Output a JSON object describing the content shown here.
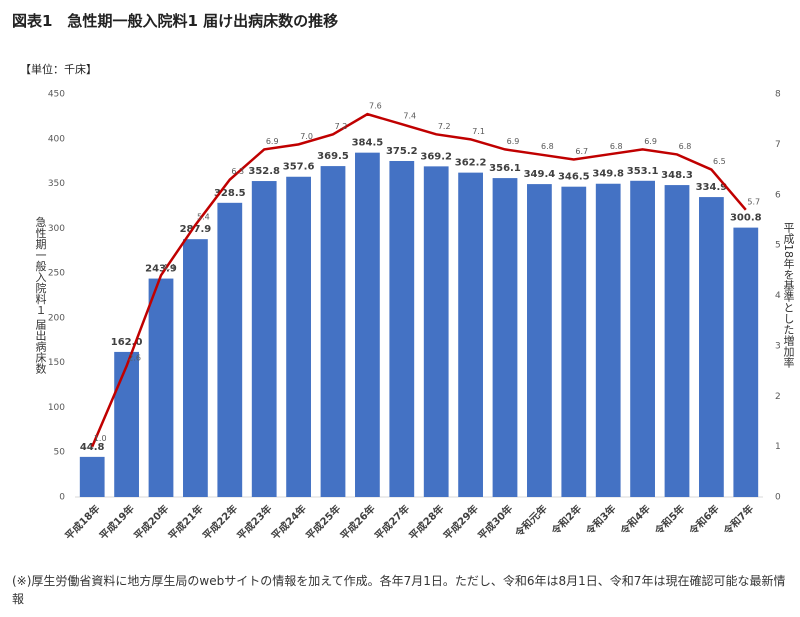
{
  "chart_data": {
    "type": "bar",
    "title": "図表1　急性期一般入院料1 届け出病床数の推移",
    "unit_label": "【単位：千床】",
    "y_label": "急性期一般入院料１ 届出病床数",
    "y2_label": "平成18年を基準とした増加率",
    "note": "(※)厚生労働省資料に地方厚生局のwebサイトの情報を加えて作成。各年7月1日。ただし、令和6年は8月1日、令和7年は現在確認可能な最新情報",
    "categories": [
      "平成18年",
      "平成19年",
      "平成20年",
      "平成21年",
      "平成22年",
      "平成23年",
      "平成24年",
      "平成25年",
      "平成26年",
      "平成27年",
      "平成28年",
      "平成29年",
      "平成30年",
      "令和元年",
      "令和2年",
      "令和3年",
      "令和4年",
      "令和5年",
      "令和6年",
      "令和7年"
    ],
    "series": [
      {
        "type": "bar",
        "color": "#4472c4",
        "values": [
          44.8,
          162.0,
          243.9,
          287.9,
          328.5,
          352.8,
          357.6,
          369.5,
          384.5,
          375.2,
          369.2,
          362.2,
          356.1,
          349.4,
          346.5,
          349.8,
          353.1,
          348.3,
          334.9,
          300.8
        ],
        "value_labels": [
          "44.8",
          "162.0",
          "243.9",
          "287.9",
          "328.5",
          "352.8",
          "357.6",
          "369.5",
          "384.5",
          "375.2",
          "369.2",
          "362.2",
          "356.1",
          "349.4",
          "346.5",
          "349.8",
          "353.1",
          "348.3",
          "334.9",
          "300.8"
        ]
      },
      {
        "type": "line",
        "axis": "y2",
        "color": "#c00000",
        "values": [
          1.0,
          2.6,
          4.4,
          5.4,
          6.3,
          6.9,
          7.0,
          7.2,
          7.6,
          7.4,
          7.2,
          7.1,
          6.9,
          6.8,
          6.7,
          6.8,
          6.9,
          6.8,
          6.5,
          5.7
        ],
        "value_labels": [
          "1.0",
          "2.6",
          "4.4",
          "5.4",
          "6.3",
          "6.9",
          "7.0",
          "7.2",
          "7.6",
          "7.4",
          "7.2",
          "7.1",
          "6.9",
          "6.8",
          "6.7",
          "6.8",
          "6.9",
          "6.8",
          "6.5",
          "5.7"
        ]
      }
    ],
    "ylim": [
      0,
      450
    ],
    "yticks": [
      0,
      50,
      100,
      150,
      200,
      250,
      300,
      350,
      400,
      450
    ],
    "y2lim": [
      0,
      8
    ],
    "y2ticks": [
      0,
      1,
      2,
      3,
      4,
      5,
      6,
      7,
      8
    ]
  }
}
